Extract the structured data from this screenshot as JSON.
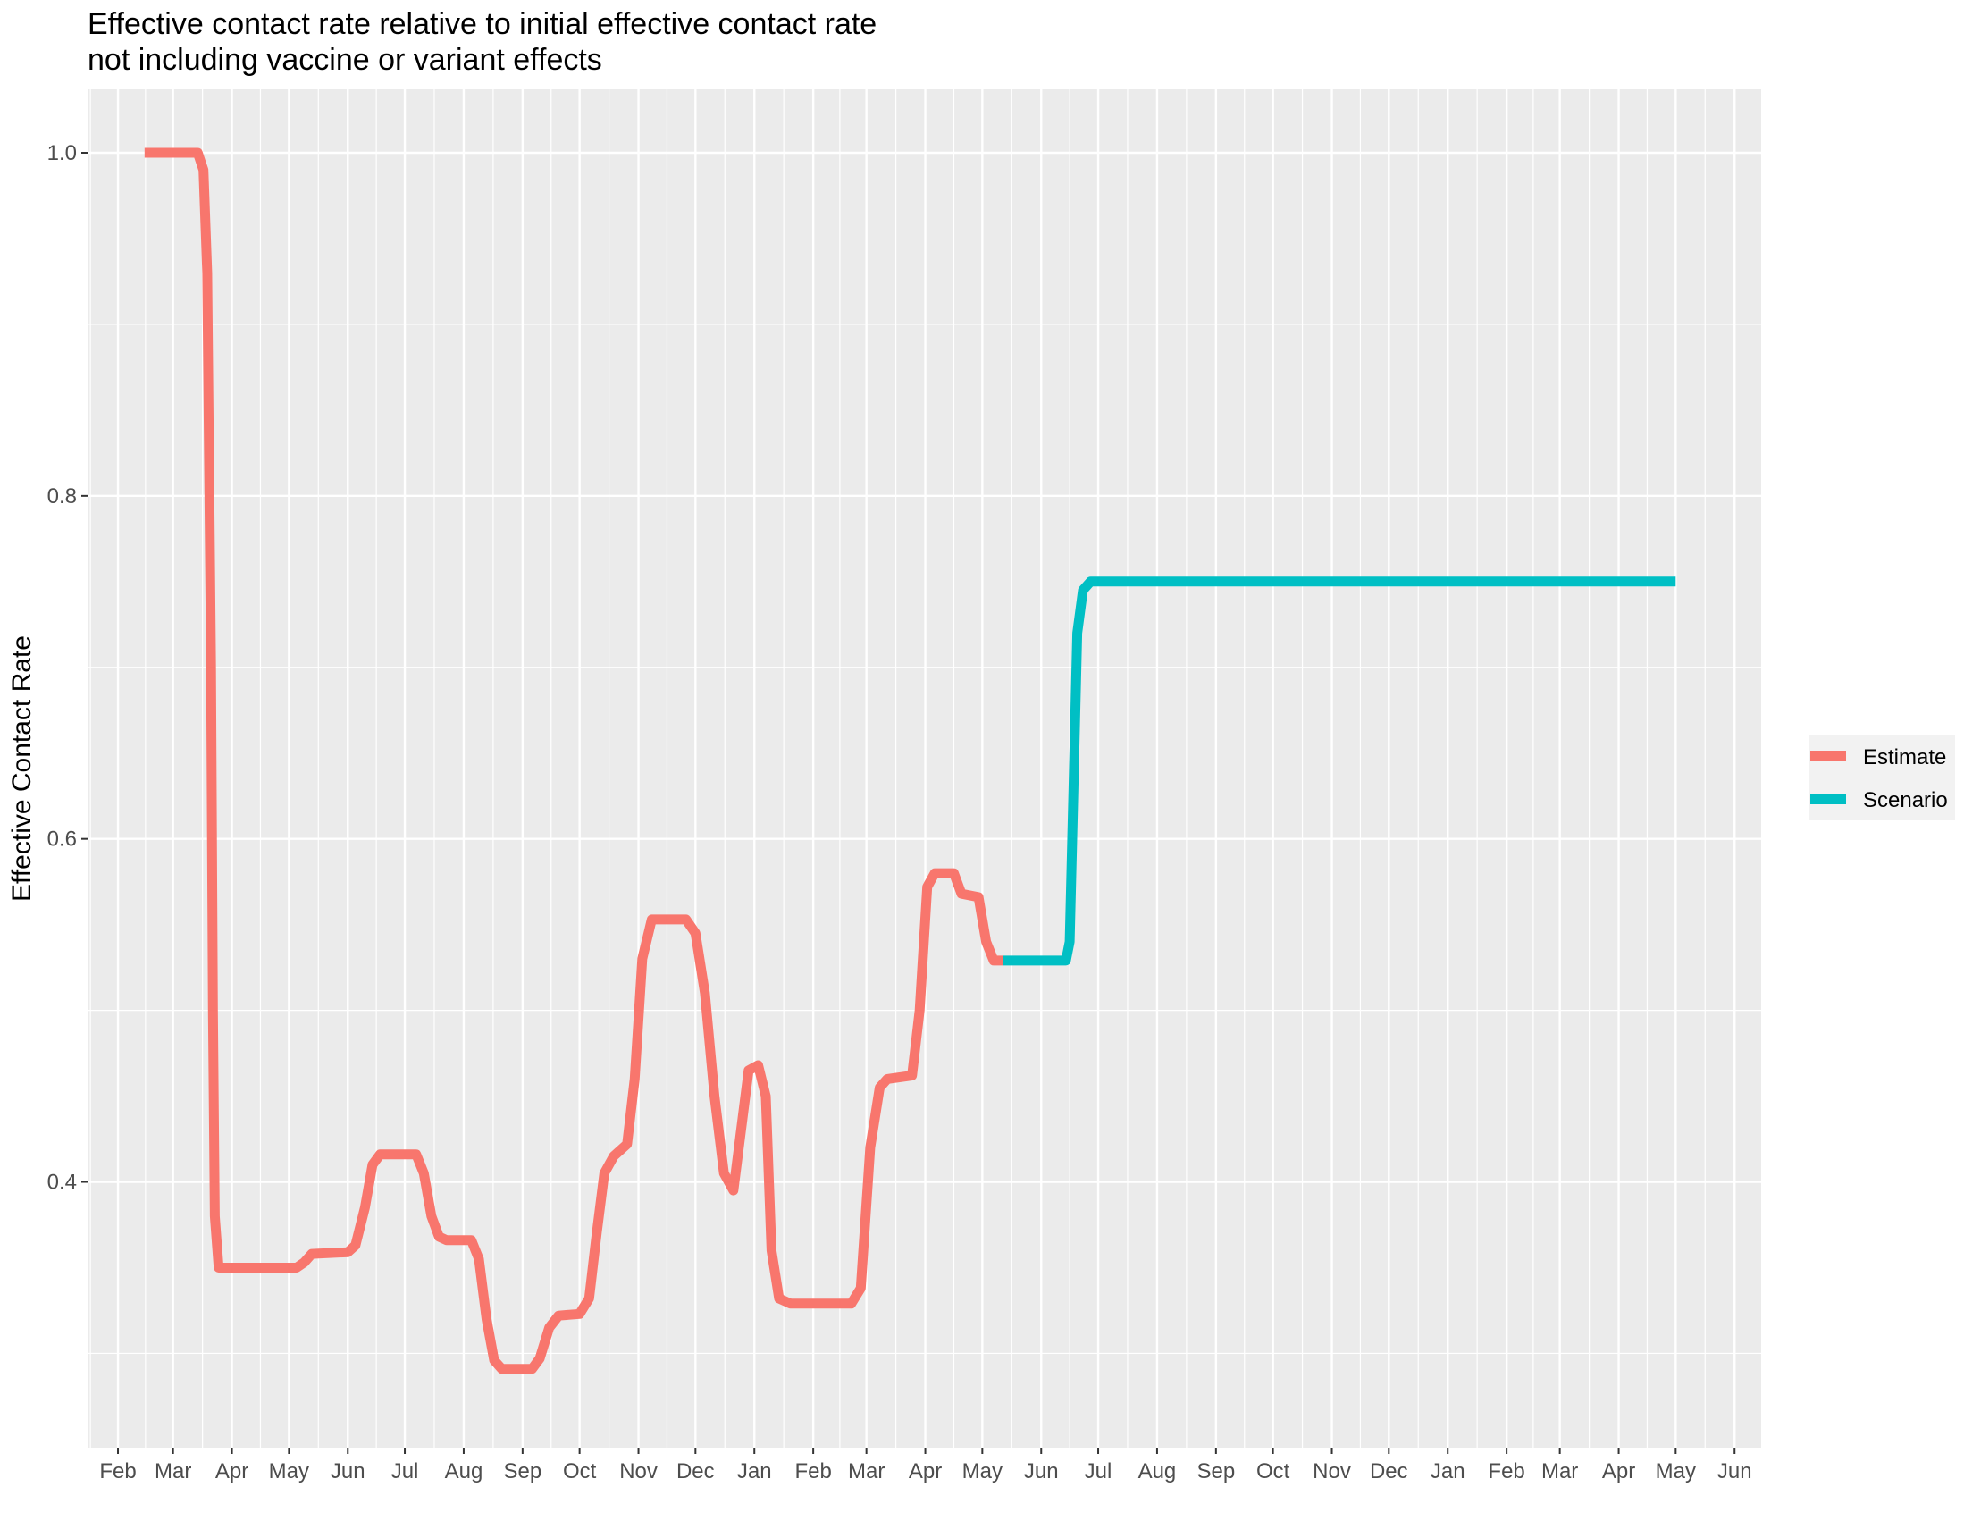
{
  "title_line1": "Effective contact rate relative to initial effective contact rate",
  "title_line2": "not including vaccine or variant effects",
  "colors": {
    "panel": "#EBEBEB",
    "grid": "#FFFFFF",
    "estimate": "#F8766D",
    "scenario": "#00BFC4"
  },
  "chart_data": {
    "type": "line",
    "title": "Effective contact rate relative to initial effective contact rate\nnot including vaccine or variant effects",
    "xlabel": "",
    "ylabel": "Effective Contact Rate",
    "xlim": [
      "2020-01-16",
      "2022-06-15"
    ],
    "ylim": [
      0.245,
      1.037
    ],
    "y_ticks": [
      0.4,
      0.6,
      0.8,
      1.0
    ],
    "y_tick_labels": [
      "0.4",
      "0.6",
      "0.8",
      "1.0"
    ],
    "x_tick_dates": [
      "2020-02-01",
      "2020-03-01",
      "2020-04-01",
      "2020-05-01",
      "2020-06-01",
      "2020-07-01",
      "2020-08-01",
      "2020-09-01",
      "2020-10-01",
      "2020-11-01",
      "2020-12-01",
      "2021-01-01",
      "2021-02-01",
      "2021-03-01",
      "2021-04-01",
      "2021-05-01",
      "2021-06-01",
      "2021-07-01",
      "2021-08-01",
      "2021-09-01",
      "2021-10-01",
      "2021-11-01",
      "2021-12-01",
      "2022-01-01",
      "2022-02-01",
      "2022-03-01",
      "2022-04-01",
      "2022-05-01",
      "2022-06-01"
    ],
    "x_tick_labels": [
      "Feb",
      "Mar",
      "Apr",
      "May",
      "Jun",
      "Jul",
      "Aug",
      "Sep",
      "Oct",
      "Nov",
      "Dec",
      "Jan",
      "Feb",
      "Mar",
      "Apr",
      "May",
      "Jun",
      "Jul",
      "Aug",
      "Sep",
      "Oct",
      "Nov",
      "Dec",
      "Jan",
      "Feb",
      "Mar",
      "Apr",
      "May",
      "Jun"
    ],
    "grid": true,
    "legend_position": "right",
    "series": [
      {
        "name": "Estimate",
        "color": "#F8766D",
        "points": [
          [
            "2020-02-15",
            1.0
          ],
          [
            "2020-03-14",
            1.0
          ],
          [
            "2020-03-17",
            0.99
          ],
          [
            "2020-03-19",
            0.93
          ],
          [
            "2020-03-21",
            0.7
          ],
          [
            "2020-03-22",
            0.5
          ],
          [
            "2020-03-23",
            0.38
          ],
          [
            "2020-03-25",
            0.35
          ],
          [
            "2020-04-01",
            0.35
          ],
          [
            "2020-05-05",
            0.35
          ],
          [
            "2020-05-09",
            0.353
          ],
          [
            "2020-05-13",
            0.358
          ],
          [
            "2020-06-01",
            0.359
          ],
          [
            "2020-06-05",
            0.363
          ],
          [
            "2020-06-10",
            0.385
          ],
          [
            "2020-06-14",
            0.41
          ],
          [
            "2020-06-18",
            0.416
          ],
          [
            "2020-07-07",
            0.416
          ],
          [
            "2020-07-11",
            0.405
          ],
          [
            "2020-07-15",
            0.38
          ],
          [
            "2020-07-19",
            0.368
          ],
          [
            "2020-07-23",
            0.366
          ],
          [
            "2020-08-05",
            0.366
          ],
          [
            "2020-08-09",
            0.355
          ],
          [
            "2020-08-13",
            0.32
          ],
          [
            "2020-08-17",
            0.296
          ],
          [
            "2020-08-21",
            0.291
          ],
          [
            "2020-09-06",
            0.291
          ],
          [
            "2020-09-10",
            0.297
          ],
          [
            "2020-09-15",
            0.315
          ],
          [
            "2020-09-20",
            0.322
          ],
          [
            "2020-10-01",
            0.323
          ],
          [
            "2020-10-06",
            0.332
          ],
          [
            "2020-10-10",
            0.37
          ],
          [
            "2020-10-14",
            0.405
          ],
          [
            "2020-10-19",
            0.415
          ],
          [
            "2020-10-26",
            0.422
          ],
          [
            "2020-10-30",
            0.46
          ],
          [
            "2020-11-03",
            0.53
          ],
          [
            "2020-11-08",
            0.553
          ],
          [
            "2020-11-26",
            0.553
          ],
          [
            "2020-12-01",
            0.545
          ],
          [
            "2020-12-06",
            0.51
          ],
          [
            "2020-12-11",
            0.45
          ],
          [
            "2020-12-16",
            0.405
          ],
          [
            "2020-12-21",
            0.395
          ],
          [
            "2020-12-25",
            0.43
          ],
          [
            "2020-12-29",
            0.465
          ],
          [
            "2021-01-03",
            0.468
          ],
          [
            "2021-01-07",
            0.45
          ],
          [
            "2021-01-10",
            0.36
          ],
          [
            "2021-01-14",
            0.332
          ],
          [
            "2021-01-20",
            0.329
          ],
          [
            "2021-02-21",
            0.329
          ],
          [
            "2021-02-26",
            0.338
          ],
          [
            "2021-03-03",
            0.42
          ],
          [
            "2021-03-08",
            0.455
          ],
          [
            "2021-03-12",
            0.46
          ],
          [
            "2021-03-25",
            0.462
          ],
          [
            "2021-03-29",
            0.5
          ],
          [
            "2021-04-02",
            0.572
          ],
          [
            "2021-04-06",
            0.58
          ],
          [
            "2021-04-16",
            0.58
          ],
          [
            "2021-04-20",
            0.568
          ],
          [
            "2021-04-29",
            0.566
          ],
          [
            "2021-05-03",
            0.54
          ],
          [
            "2021-05-07",
            0.529
          ],
          [
            "2021-05-12",
            0.529
          ]
        ]
      },
      {
        "name": "Scenario",
        "color": "#00BFC4",
        "points": [
          [
            "2021-05-12",
            0.529
          ],
          [
            "2021-06-14",
            0.529
          ],
          [
            "2021-06-16",
            0.54
          ],
          [
            "2021-06-18",
            0.63
          ],
          [
            "2021-06-20",
            0.72
          ],
          [
            "2021-06-23",
            0.745
          ],
          [
            "2021-06-27",
            0.75
          ],
          [
            "2022-05-01",
            0.75
          ]
        ]
      }
    ]
  }
}
